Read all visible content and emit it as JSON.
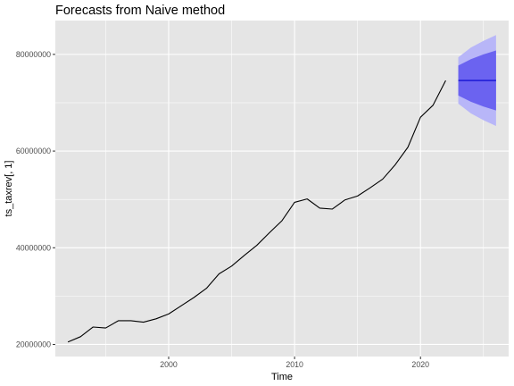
{
  "chart_data": {
    "type": "line",
    "title": "Forecasts from Naive method",
    "xlabel": "Time",
    "ylabel": "ts_taxrev[, 1]",
    "xlim": [
      1991.0,
      2027.0
    ],
    "ylim": [
      17500000,
      87000000
    ],
    "x_ticks": [
      2000,
      2010,
      2020
    ],
    "x_tick_labels": [
      "2000",
      "2010",
      "2020"
    ],
    "x_minor_ticks": [
      1995,
      2005,
      2015,
      2025
    ],
    "y_ticks": [
      20000000,
      40000000,
      60000000,
      80000000
    ],
    "y_tick_labels": [
      "20000000",
      "40000000",
      "60000000",
      "80000000"
    ],
    "y_minor_ticks": [
      30000000,
      50000000,
      70000000
    ],
    "grid": true,
    "colors": {
      "panel": "#e5e5e5",
      "grid": "#ffffff",
      "series": "#000000",
      "interval_80": "#6b63f0",
      "interval_95": "#b8b6f8",
      "forecast_line": "#0000cc"
    },
    "series": [
      {
        "role": "history",
        "x": [
          1992,
          1993,
          1994,
          1995,
          1996,
          1997,
          1998,
          1999,
          2000,
          2001,
          2002,
          2003,
          2004,
          2005,
          2006,
          2007,
          2008,
          2009,
          2010,
          2011,
          2012,
          2013,
          2014,
          2015,
          2016,
          2017,
          2018,
          2019,
          2020,
          2021,
          2022
        ],
        "y": [
          20500000,
          21600000,
          23600000,
          23400000,
          24900000,
          24900000,
          24600000,
          25300000,
          26300000,
          28000000,
          29700000,
          31600000,
          34600000,
          36200000,
          38400000,
          40500000,
          43100000,
          45600000,
          49400000,
          50100000,
          48200000,
          48000000,
          49900000,
          50700000,
          52400000,
          54200000,
          57200000,
          60800000,
          67000000,
          69500000,
          74600000
        ]
      }
    ],
    "forecast": {
      "x": [
        2023,
        2024,
        2025,
        2026
      ],
      "mean": [
        74600000,
        74600000,
        74600000,
        74600000
      ],
      "lo80": [
        71500000,
        70200000,
        69200000,
        68400000
      ],
      "hi80": [
        77700000,
        79000000,
        80000000,
        80800000
      ],
      "lo95": [
        69800000,
        67800000,
        66400000,
        65200000
      ],
      "hi95": [
        79400000,
        81400000,
        82800000,
        84000000
      ]
    }
  }
}
